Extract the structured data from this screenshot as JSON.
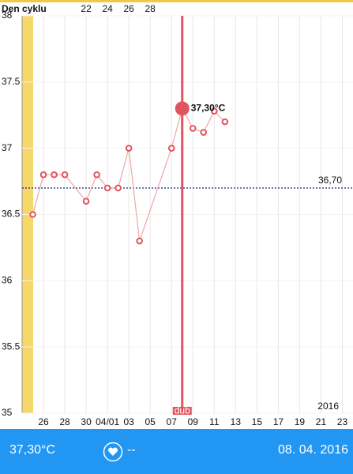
{
  "chart_data": {
    "type": "line",
    "cycle_label": "Den cyklu",
    "cycle_ticks": [
      {
        "value": 90,
        "label": "22"
      },
      {
        "value": 92,
        "label": "24"
      },
      {
        "value": 94,
        "label": "26"
      },
      {
        "value": 96,
        "label": "28"
      }
    ],
    "series": [
      {
        "color": "#e05560",
        "line_color": "#f2a5a5",
        "x": [
          85,
          86,
          87,
          88,
          90,
          91,
          92,
          93,
          94,
          95,
          98,
          99,
          100,
          101,
          102,
          103
        ],
        "values": [
          36.5,
          36.8,
          36.8,
          36.8,
          36.6,
          36.8,
          36.7,
          36.7,
          37.0,
          36.3,
          37.0,
          37.3,
          37.15,
          37.12,
          37.28,
          37.2
        ]
      }
    ],
    "selected": {
      "index": 11,
      "label": "37,30°C",
      "month_label": "dub"
    },
    "reference_line": {
      "value": 36.7,
      "label": "36,70"
    },
    "year_label": "2016",
    "xlim": [
      84,
      115
    ],
    "xticks": [
      {
        "value": 86,
        "label": "26"
      },
      {
        "value": 88,
        "label": "28"
      },
      {
        "value": 90,
        "label": "30"
      },
      {
        "value": 92,
        "label": "04/01"
      },
      {
        "value": 94,
        "label": "03"
      },
      {
        "value": 96,
        "label": "05"
      },
      {
        "value": 98,
        "label": "07"
      },
      {
        "value": 100,
        "label": "09"
      },
      {
        "value": 102,
        "label": "11"
      },
      {
        "value": 104,
        "label": "13"
      },
      {
        "value": 106,
        "label": "15"
      },
      {
        "value": 108,
        "label": "17"
      },
      {
        "value": 110,
        "label": "19"
      },
      {
        "value": 112,
        "label": "21"
      },
      {
        "value": 114,
        "label": "23"
      }
    ],
    "ylim": [
      35,
      38
    ],
    "yticks": [
      35,
      35.5,
      36,
      36.5,
      37,
      37.5,
      38
    ],
    "grid": true
  },
  "footer": {
    "temperature": "37,30°C",
    "note": "--",
    "date": "08. 04. 2016"
  }
}
